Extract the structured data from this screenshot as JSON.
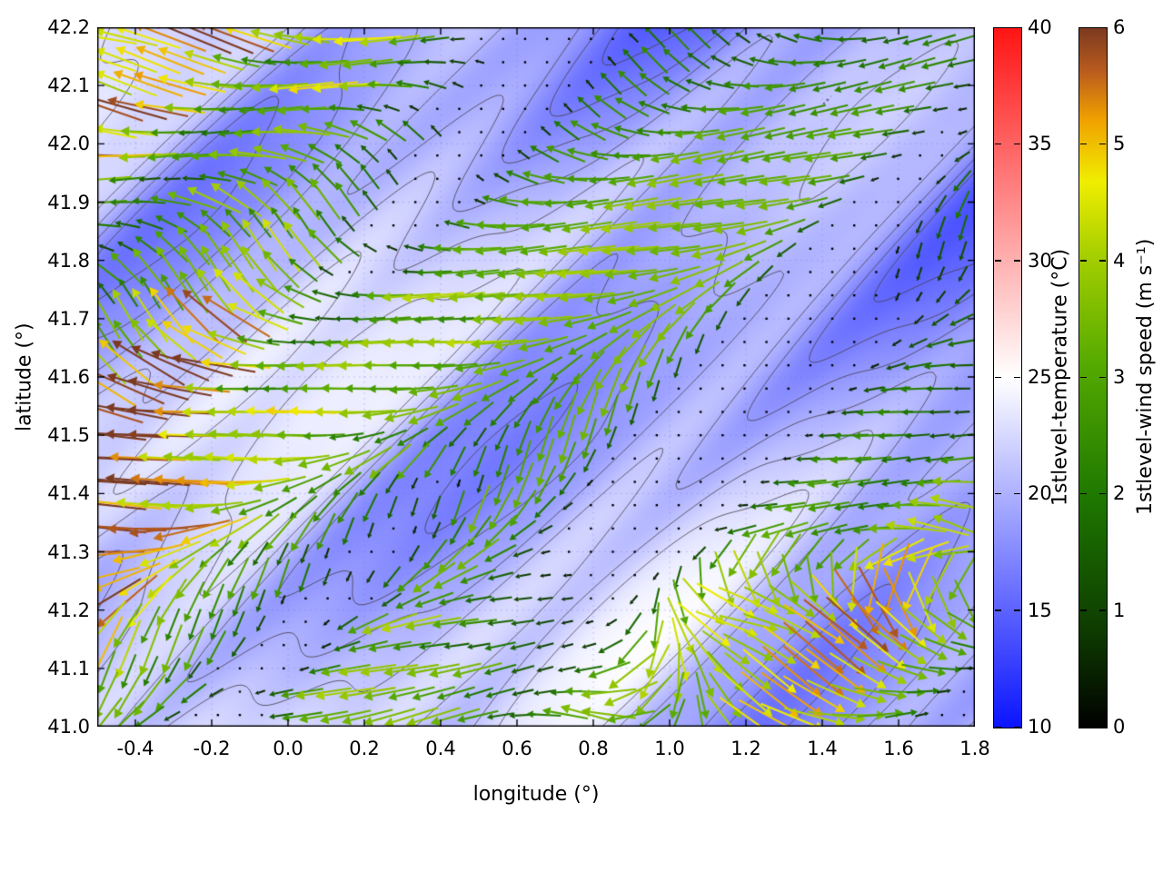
{
  "chart_data": {
    "type": "quiver-vector-field-over-heatmap",
    "title": "",
    "xlabel": "longitude (°)",
    "ylabel": "latitude (°)",
    "xlim": [
      -0.5,
      1.8
    ],
    "ylim": [
      41.0,
      42.2
    ],
    "grid": true,
    "x_tick_values": [
      -0.4,
      -0.2,
      0.0,
      0.2,
      0.4,
      0.6,
      0.8,
      1.0,
      1.2,
      1.4,
      1.6,
      1.8
    ],
    "x_tick_labels": [
      "-0.4",
      "-0.2",
      "0.0",
      "0.2",
      "0.4",
      "0.6",
      "0.8",
      "1.0",
      "1.2",
      "1.4",
      "1.6",
      "1.8"
    ],
    "y_tick_values": [
      41.0,
      41.1,
      41.2,
      41.3,
      41.4,
      41.5,
      41.6,
      41.7,
      41.8,
      41.9,
      42.0,
      42.1,
      42.2
    ],
    "y_tick_labels": [
      "41.0",
      "41.1",
      "41.2",
      "41.3",
      "41.4",
      "41.5",
      "41.6",
      "41.7",
      "41.8",
      "41.9",
      "42.0",
      "42.1",
      "42.2"
    ],
    "background_field": {
      "quantity": "1stlevel-temperature",
      "units": "°C",
      "displayed_value_range": [
        13,
        25.2
      ],
      "description": "Smooth mottled near-surface temperature field, mostly 16-24 °C: mid periwinkle-blue over most of the domain, lighter (22-25 °C, near white) along the west edge and in south-central patches, darker blue (15-17 °C) in the north-east; thin dark-grey temperature contour loops overlaid everywhere."
    },
    "vector_field": {
      "quantity": "1stlevel-wind speed",
      "units": "m s⁻¹",
      "value_range": [
        0,
        6
      ],
      "grid_cols": 40,
      "grid_rows": 30,
      "description": "Wind arrows on a regular ~40x30 grid, predominantly blowing westward (heads point left). Long yellow/orange streaks (4-5.5 m s⁻¹) near the west edge, moderate dark-green arrows (1.5-3 m s⁻¹) over the interior, near-calm black dots scattered across the centre-east, and green eastward arrows in the south-east corner."
    },
    "colorbars": [
      {
        "label": "1stlevel-temperature (°C)",
        "min": 10,
        "max": 40,
        "tick_values": [
          10,
          15,
          20,
          25,
          30,
          35,
          40
        ],
        "tick_labels": [
          "10",
          "15",
          "20",
          "25",
          "30",
          "35",
          "40"
        ],
        "stops": [
          [
            0,
            "#0a14ff"
          ],
          [
            0.5,
            "#ffffff"
          ],
          [
            1,
            "#ff1414"
          ]
        ]
      },
      {
        "label": "1stlevel-wind speed (m s⁻¹)",
        "min": 0,
        "max": 6,
        "tick_values": [
          0,
          1,
          2,
          3,
          4,
          5,
          6
        ],
        "tick_labels": [
          "0",
          "1",
          "2",
          "3",
          "4",
          "5",
          "6"
        ],
        "stops": [
          [
            0,
            "#000000"
          ],
          [
            0.14,
            "#0e3c00"
          ],
          [
            0.33,
            "#1e7800"
          ],
          [
            0.52,
            "#55aa00"
          ],
          [
            0.68,
            "#a8d000"
          ],
          [
            0.78,
            "#f0ee00"
          ],
          [
            0.87,
            "#f0a000"
          ],
          [
            0.94,
            "#b85a1e"
          ],
          [
            1,
            "#7c3a20"
          ]
        ]
      }
    ],
    "render_hints": {
      "grid_color": "rgba(110,110,230,0.45)",
      "contour": {
        "color": "rgba(70,62,72,0.8)",
        "levels": [
          15.5,
          17,
          18.5,
          20,
          21.5,
          23
        ]
      },
      "temp": {
        "base": 19.6,
        "west": 1.4,
        "ne": 1.6,
        "south": 0.7,
        "clamp": [
          13,
          25.2
        ],
        "waves": [
          [
            2.0,
            7.0,
            11.0,
            0.8
          ],
          [
            1.6,
            13.0,
            5.0,
            2.1
          ],
          [
            1.1,
            21.0,
            17.0,
            4.4
          ],
          [
            0.7,
            34.0,
            27.0,
            1.3
          ],
          [
            0.5,
            55.0,
            43.0,
            3.0
          ]
        ]
      },
      "wind": {
        "base": 1.9,
        "east": 0.6,
        "west": 2.6,
        "band_u": 0.45,
        "band_amp": 0.8,
        "band_freq": 2.7,
        "se_boost": 1.5,
        "waves": [
          [
            1.5,
            6.3,
            9.7,
            1.0
          ],
          [
            1.2,
            14.0,
            6.0,
            3.7
          ],
          [
            0.9,
            23.0,
            15.0,
            5.2
          ],
          [
            0.6,
            37.0,
            29.0,
            2.2
          ]
        ]
      },
      "dir": {
        "se_u": [
          0.55,
          0.75
        ],
        "se_v": [
          0.7,
          0.85
        ],
        "waves": [
          [
            0.45,
            5.0,
            8.0,
            0.6
          ],
          [
            0.35,
            12.0,
            19.0,
            2.9
          ],
          [
            0.5,
            3.0,
            3.5,
            4.0
          ]
        ]
      },
      "arrows": {
        "cols": 40,
        "rows": 30,
        "scale": 14,
        "max_len": 84,
        "width": 2.1,
        "dot_threshold": 0.35
      }
    }
  }
}
